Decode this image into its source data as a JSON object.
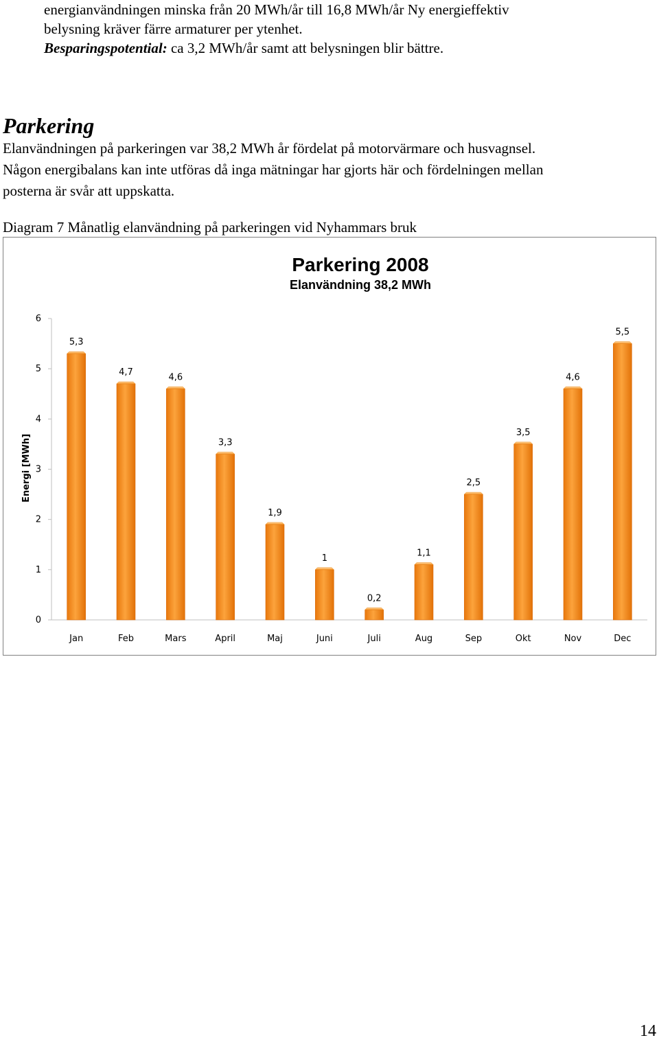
{
  "document": {
    "intro_lines": [
      "energianvändningen minska från 20 MWh/år till 16,8 MWh/år Ny energieffektiv",
      "belysning kräver färre armaturer per ytenhet."
    ],
    "savings_label": "Besparingspotential:",
    "savings_text": " ca 3,2 MWh/år samt att belysningen blir bättre.",
    "section_heading": "Parkering",
    "body_lines": [
      "Elanvändningen på parkeringen var 38,2 MWh år fördelat på motorvärmare och husvagnsel.",
      "Någon energibalans kan inte utföras då inga mätningar har gjorts här och fördelningen mellan",
      "posterna är svår att uppskatta."
    ],
    "diagram_caption": "Diagram 7 Månatlig elanvändning på parkeringen vid Nyhammars bruk",
    "page_number": "14"
  },
  "chart_data": {
    "type": "bar",
    "title": "Parkering 2008",
    "subtitle": "Elanvändning 38,2 MWh",
    "xlabel": "",
    "ylabel": "Energi [MWh]",
    "categories": [
      "Jan",
      "Feb",
      "Mars",
      "April",
      "Maj",
      "Juni",
      "Juli",
      "Aug",
      "Sep",
      "Okt",
      "Nov",
      "Dec"
    ],
    "values": [
      5.3,
      4.7,
      4.6,
      3.3,
      1.9,
      1,
      0.2,
      1.1,
      2.5,
      3.5,
      4.6,
      5.5
    ],
    "data_labels": [
      "5,3",
      "4,7",
      "4,6",
      "3,3",
      "1,9",
      "1",
      "0,2",
      "1,1",
      "2,5",
      "3,5",
      "4,6",
      "5,5"
    ],
    "ylim": [
      0,
      6
    ],
    "yticks": [
      "0",
      "1",
      "2",
      "3",
      "4",
      "5",
      "6"
    ],
    "grid": false,
    "legend": "none",
    "bar_color": "#f7962a"
  }
}
